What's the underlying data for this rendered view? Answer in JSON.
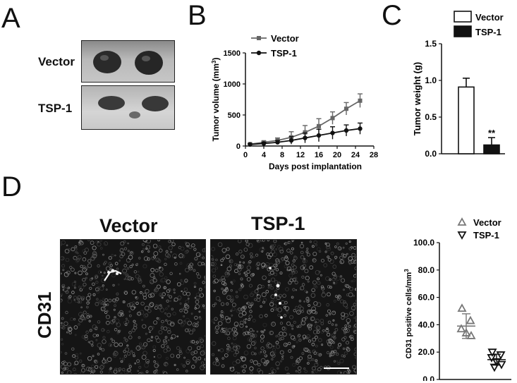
{
  "panels": {
    "A": {
      "letter": "A",
      "rows": [
        "Vector",
        "TSP-1"
      ]
    },
    "B": {
      "letter": "B"
    },
    "C": {
      "letter": "C"
    },
    "D": {
      "letter": "D",
      "image_titles": [
        "Vector",
        "TSP-1"
      ],
      "stain_label": "CD31"
    }
  },
  "colors": {
    "vector_line": "#666666",
    "tsp1_line": "#111111",
    "vector_bar": "#ffffff",
    "tsp1_bar": "#111111",
    "scatter_vector": "#777777",
    "scatter_tsp1": "#111111"
  },
  "chart_data": [
    {
      "id": "B",
      "type": "line",
      "title": "",
      "xlabel": "Days post implantation",
      "ylabel": "Tumor volume (mm",
      "ylabel_sup": "3",
      "ylabel_close": ")",
      "xlim": [
        0,
        28
      ],
      "ylim": [
        0,
        1500
      ],
      "xticks": [
        0,
        4,
        8,
        12,
        16,
        20,
        24,
        28
      ],
      "yticks": [
        0,
        500,
        1000,
        1500
      ],
      "legend": "top-left",
      "x": [
        1,
        4,
        7,
        10,
        13,
        16,
        19,
        22,
        25
      ],
      "series": [
        {
          "name": "Vector",
          "marker": "square",
          "values": [
            30,
            60,
            90,
            140,
            220,
            320,
            450,
            600,
            730
          ],
          "err": [
            10,
            20,
            40,
            90,
            110,
            120,
            100,
            100,
            110
          ]
        },
        {
          "name": "TSP-1",
          "marker": "circle",
          "values": [
            25,
            40,
            60,
            90,
            130,
            170,
            210,
            250,
            280
          ],
          "err": [
            10,
            20,
            30,
            60,
            80,
            100,
            100,
            90,
            90
          ]
        }
      ]
    },
    {
      "id": "C",
      "type": "bar",
      "title": "",
      "ylabel": "Tumor weight (g)",
      "ylim": [
        0,
        1.5
      ],
      "yticks": [
        "0.0",
        "0.5",
        "1.0",
        "1.5"
      ],
      "yticks_values": [
        0,
        0.5,
        1.0,
        1.5
      ],
      "legend": "top-right",
      "categories": [
        "Vector",
        "TSP-1"
      ],
      "values": [
        0.91,
        0.12
      ],
      "err": [
        0.12,
        0.1
      ],
      "annotation": "**"
    },
    {
      "id": "D",
      "type": "scatter",
      "title": "",
      "ylabel": "CD31 positive cells/mm",
      "ylabel_sup": "3",
      "ylim": [
        0,
        100
      ],
      "yticks": [
        "0.0",
        "20.0",
        "40.0",
        "60.0",
        "80.0",
        "100.0"
      ],
      "yticks_values": [
        0,
        20,
        40,
        60,
        80,
        100
      ],
      "legend": "top",
      "series": [
        {
          "name": "Vector",
          "marker": "triangle-up",
          "points": [
            52,
            43,
            37,
            34,
            32
          ],
          "mean": 39,
          "sd": 9
        },
        {
          "name": "TSP-1",
          "marker": "triangle-down",
          "points": [
            20,
            18,
            16,
            13,
            11,
            9
          ],
          "mean": 14.5,
          "sd": 4
        }
      ]
    }
  ]
}
